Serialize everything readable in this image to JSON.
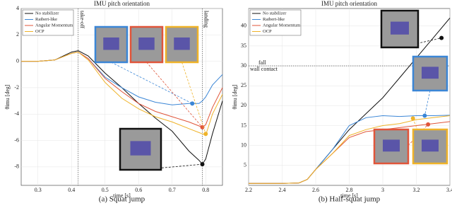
{
  "chart_data": [
    {
      "type": "line",
      "title": "IMU pitch orientation",
      "xlabel": "time [s]",
      "ylabel": "θimu [deg]",
      "caption": "(a) Squat jump",
      "x": [
        0.25,
        0.3,
        0.35,
        0.4,
        0.42,
        0.45,
        0.5,
        0.55,
        0.6,
        0.65,
        0.7,
        0.75,
        0.78,
        0.79,
        0.8,
        0.82,
        0.85
      ],
      "series": [
        {
          "name": "No stabilizer",
          "color": "#111111",
          "values": [
            0,
            0,
            0.1,
            0.7,
            0.8,
            0.4,
            -0.9,
            -2,
            -3.2,
            -4.3,
            -5.3,
            -6.8,
            -7.5,
            -7.8,
            -7.4,
            -5.5,
            -3
          ]
        },
        {
          "name": "Raibert-like",
          "color": "#3b86d6",
          "values": [
            0,
            0,
            0.1,
            0.6,
            0.7,
            0.2,
            -1.2,
            -2,
            -2.7,
            -3.1,
            -3.3,
            -3.2,
            -3.2,
            -3,
            -2.7,
            -1.8,
            -1
          ]
        },
        {
          "name": "Angular Momentum",
          "color": "#e0553a",
          "values": [
            0,
            0,
            0.1,
            0.6,
            0.7,
            0.2,
            -1.3,
            -2.3,
            -3.2,
            -3.8,
            -4.2,
            -4.6,
            -4.9,
            -5,
            -4.8,
            -3.5,
            -2
          ]
        },
        {
          "name": "OCP",
          "color": "#efb329",
          "values": [
            0,
            0,
            0.1,
            0.6,
            0.7,
            0.1,
            -1.6,
            -2.8,
            -3.6,
            -4.2,
            -4.6,
            -5.1,
            -5.4,
            -5.5,
            -5.6,
            -4,
            -2.5
          ]
        }
      ],
      "markers": [
        {
          "x": 0.79,
          "y": -7.8,
          "color": "#111111"
        },
        {
          "x": 0.76,
          "y": -3.2,
          "color": "#3b86d6"
        },
        {
          "x": 0.79,
          "y": -5,
          "color": "#e0553a"
        },
        {
          "x": 0.8,
          "y": -5.5,
          "color": "#efb329"
        }
      ],
      "vlines": [
        {
          "x": 0.42,
          "label": "take-off"
        },
        {
          "x": 0.79,
          "label": "landing"
        }
      ],
      "xlim": [
        0.25,
        0.85
      ],
      "xticks": [
        0.3,
        0.4,
        0.5,
        0.6,
        0.7,
        0.8
      ],
      "ylim": [
        -9.4,
        4
      ],
      "yticks": [
        -8,
        -6,
        -4,
        -2,
        0,
        2,
        4
      ],
      "grid": true,
      "legend": "upper left"
    },
    {
      "type": "line",
      "title": "IMU pitch orientation",
      "xlabel": "time [s]",
      "ylabel": "θimu [deg]",
      "caption": "(b) Half-squat jump",
      "x": [
        2.2,
        2.3,
        2.4,
        2.5,
        2.55,
        2.6,
        2.7,
        2.8,
        2.9,
        3.0,
        3.1,
        3.2,
        3.3,
        3.4
      ],
      "series": [
        {
          "name": "No stabilizer",
          "color": "#111111",
          "values": [
            0.5,
            0.5,
            0.5,
            0.6,
            1.5,
            4,
            9,
            14,
            18,
            22,
            27,
            32,
            37,
            42
          ]
        },
        {
          "name": "Raibert-like",
          "color": "#3b86d6",
          "values": [
            0.5,
            0.5,
            0.5,
            0.6,
            1.5,
            4,
            9,
            15,
            17,
            17.5,
            17.3,
            17.5,
            17.5,
            17.6
          ]
        },
        {
          "name": "Angular Momentum",
          "color": "#e0553a",
          "values": [
            0.5,
            0.5,
            0.5,
            0.6,
            1.5,
            4,
            8,
            12,
            13.5,
            14,
            14.5,
            15,
            15.5,
            16
          ]
        },
        {
          "name": "OCP",
          "color": "#efb329",
          "values": [
            0.5,
            0.5,
            0.5,
            0.6,
            1.5,
            4,
            8,
            12.5,
            14,
            15,
            15.5,
            16.5,
            17,
            17.5
          ]
        }
      ],
      "markers": [
        {
          "x": 3.35,
          "y": 37,
          "color": "#111111"
        },
        {
          "x": 3.25,
          "y": 17.5,
          "color": "#3b86d6"
        },
        {
          "x": 3.27,
          "y": 15.3,
          "color": "#e0553a"
        },
        {
          "x": 3.18,
          "y": 16.8,
          "color": "#efb329"
        }
      ],
      "hlines": [
        {
          "y": 30,
          "label_above": "fall",
          "label_below": "wall contact"
        }
      ],
      "xlim": [
        2.2,
        3.4
      ],
      "xticks": [
        2.2,
        2.4,
        2.6,
        2.8,
        3,
        3.2,
        3.4
      ],
      "ylim": [
        0,
        44.4
      ],
      "yticks": [
        5,
        10,
        15,
        20,
        25,
        30,
        35,
        40
      ],
      "grid": true,
      "legend": "upper left"
    }
  ]
}
